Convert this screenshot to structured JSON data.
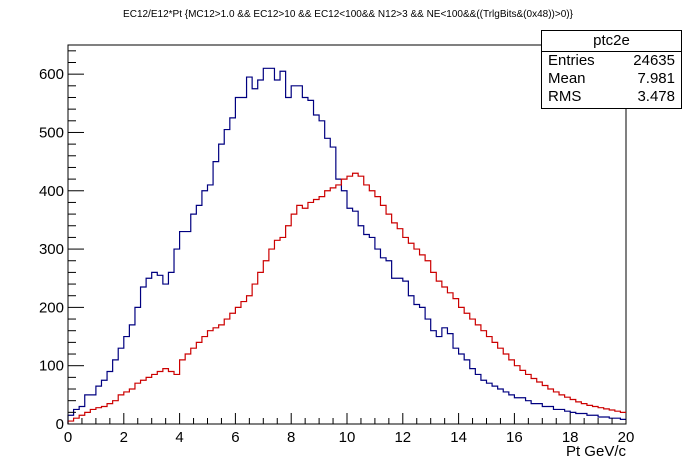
{
  "chart_data": {
    "type": "histogram",
    "title": "EC12/E12*Pt {MC12>1.0 && EC12>10 && EC12<100&& N12>3 && NE<100&&((TrlgBits&(0x48))>0)}",
    "xlabel": "Pt GeV/c",
    "ylabel": "",
    "xlim": [
      0,
      20
    ],
    "ylim": [
      0,
      650
    ],
    "xticks": [
      "0",
      "2",
      "4",
      "6",
      "8",
      "10",
      "12",
      "14",
      "16",
      "18",
      "20"
    ],
    "yticks": [
      "0",
      "100",
      "200",
      "300",
      "400",
      "500",
      "600"
    ],
    "grid": false,
    "bin_width": 0.2,
    "series": [
      {
        "color": "#000080",
        "values": [
          15,
          25,
          30,
          50,
          50,
          65,
          75,
          90,
          110,
          130,
          150,
          170,
          200,
          235,
          250,
          260,
          255,
          240,
          260,
          300,
          330,
          330,
          360,
          375,
          400,
          410,
          450,
          480,
          505,
          525,
          560,
          560,
          595,
          575,
          590,
          610,
          610,
          590,
          605,
          560,
          580,
          580,
          560,
          555,
          530,
          520,
          490,
          475,
          420,
          400,
          370,
          365,
          340,
          325,
          320,
          300,
          285,
          280,
          250,
          250,
          245,
          220,
          205,
          200,
          180,
          160,
          150,
          165,
          155,
          130,
          120,
          110,
          95,
          85,
          75,
          70,
          65,
          60,
          55,
          50,
          45,
          45,
          40,
          35,
          35,
          30,
          30,
          25,
          25,
          22,
          20,
          18,
          18,
          15,
          15,
          12,
          12,
          10,
          10,
          8
        ]
      },
      {
        "color": "#cc0000",
        "values": [
          5,
          10,
          15,
          20,
          25,
          28,
          30,
          35,
          40,
          50,
          55,
          60,
          70,
          75,
          80,
          85,
          90,
          95,
          90,
          85,
          110,
          120,
          130,
          140,
          150,
          160,
          165,
          170,
          180,
          190,
          200,
          210,
          220,
          240,
          260,
          280,
          300,
          315,
          320,
          340,
          360,
          375,
          370,
          380,
          385,
          390,
          400,
          405,
          410,
          420,
          425,
          430,
          425,
          410,
          400,
          390,
          375,
          360,
          345,
          335,
          320,
          310,
          300,
          290,
          280,
          260,
          245,
          235,
          225,
          215,
          200,
          190,
          180,
          170,
          160,
          150,
          140,
          130,
          120,
          110,
          100,
          92,
          85,
          78,
          72,
          66,
          60,
          55,
          50,
          46,
          42,
          38,
          35,
          32,
          30,
          28,
          26,
          24,
          22,
          20
        ]
      }
    ]
  },
  "stats_box": {
    "name": "ptc2e",
    "entries_label": "Entries",
    "entries_value": "24635",
    "mean_label": "Mean",
    "mean_value": "7.981",
    "rms_label": "RMS",
    "rms_value": "3.478"
  }
}
